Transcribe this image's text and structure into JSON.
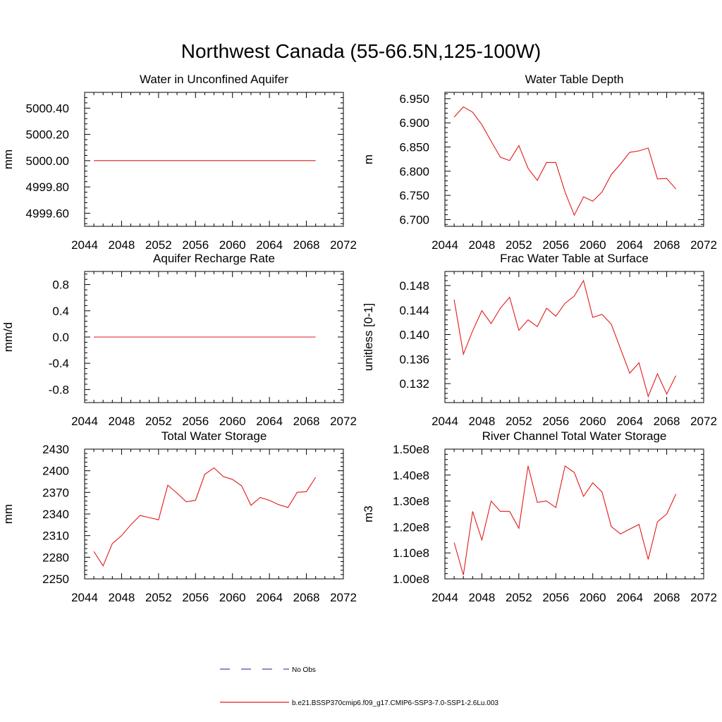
{
  "title": "Northwest Canada (55-66.5N,125-100W)",
  "legend": [
    {
      "label": "No Obs",
      "color": "#4a4aa8",
      "style": "dashed"
    },
    {
      "label": "b.e21.BSSP370cmip6.f09_g17.CMIP6-SSP3-7.0-SSP1-2.6Lu.003",
      "color": "#e31a1c",
      "style": "solid"
    }
  ],
  "series_color": "#e31a1c",
  "chart_data": [
    {
      "type": "line",
      "title": "Water in Unconfined Aquifer",
      "ylabel": "mm",
      "xlim": [
        2044,
        2072
      ],
      "xticks": [
        2044,
        2048,
        2052,
        2056,
        2060,
        2064,
        2068,
        2072
      ],
      "ylim": [
        4999.5,
        5000.52
      ],
      "yticks": [
        4999.6,
        4999.8,
        5000.0,
        5000.2,
        5000.4
      ],
      "ytick_labels": [
        "4999.60",
        "4999.80",
        "5000.00",
        "5000.20",
        "5000.40"
      ],
      "x": [
        2045,
        2046,
        2047,
        2048,
        2049,
        2050,
        2051,
        2052,
        2053,
        2054,
        2055,
        2056,
        2057,
        2058,
        2059,
        2060,
        2061,
        2062,
        2063,
        2064,
        2065,
        2066,
        2067,
        2068,
        2069
      ],
      "values": [
        5000.0,
        5000.0,
        5000.0,
        5000.0,
        5000.0,
        5000.0,
        5000.0,
        5000.0,
        5000.0,
        5000.0,
        5000.0,
        5000.0,
        5000.0,
        5000.0,
        5000.0,
        5000.0,
        5000.0,
        5000.0,
        5000.0,
        5000.0,
        5000.0,
        5000.0,
        5000.0,
        5000.0,
        5000.0
      ]
    },
    {
      "type": "line",
      "title": "Water Table Depth",
      "ylabel": "m",
      "xlim": [
        2044,
        2072
      ],
      "xticks": [
        2044,
        2048,
        2052,
        2056,
        2060,
        2064,
        2068,
        2072
      ],
      "ylim": [
        6.686,
        6.963
      ],
      "yticks": [
        6.7,
        6.75,
        6.8,
        6.85,
        6.9,
        6.95
      ],
      "ytick_labels": [
        "6.700",
        "6.750",
        "6.800",
        "6.850",
        "6.900",
        "6.950"
      ],
      "x": [
        2045,
        2046,
        2047,
        2048,
        2049,
        2050,
        2051,
        2052,
        2053,
        2054,
        2055,
        2056,
        2057,
        2058,
        2059,
        2060,
        2061,
        2062,
        2063,
        2064,
        2065,
        2066,
        2067,
        2068,
        2069
      ],
      "values": [
        6.912,
        6.933,
        6.922,
        6.896,
        6.862,
        6.829,
        6.822,
        6.853,
        6.806,
        6.781,
        6.818,
        6.818,
        6.757,
        6.709,
        6.747,
        6.738,
        6.757,
        6.793,
        6.815,
        6.839,
        6.842,
        6.848,
        6.784,
        6.785,
        6.763
      ]
    },
    {
      "type": "line",
      "title": "Aquifer Recharge Rate",
      "ylabel": "mm/d",
      "xlim": [
        2044,
        2072
      ],
      "xticks": [
        2044,
        2048,
        2052,
        2056,
        2060,
        2064,
        2068,
        2072
      ],
      "ylim": [
        -1.0,
        1.0
      ],
      "yticks": [
        -0.8,
        -0.4,
        0.0,
        0.4,
        0.8
      ],
      "ytick_labels": [
        "-0.8",
        "-0.4",
        "0.0",
        "0.4",
        "0.8"
      ],
      "x": [
        2045,
        2046,
        2047,
        2048,
        2049,
        2050,
        2051,
        2052,
        2053,
        2054,
        2055,
        2056,
        2057,
        2058,
        2059,
        2060,
        2061,
        2062,
        2063,
        2064,
        2065,
        2066,
        2067,
        2068,
        2069
      ],
      "values": [
        0.0,
        0.0,
        0.0,
        0.0,
        0.0,
        0.0,
        0.0,
        0.0,
        0.0,
        0.0,
        0.0,
        0.0,
        0.0,
        0.0,
        0.0,
        0.0,
        0.0,
        0.0,
        0.0,
        0.0,
        0.0,
        0.0,
        0.0,
        0.0,
        0.0
      ]
    },
    {
      "type": "line",
      "title": "Frac Water Table at Surface",
      "ylabel": "unitless [0-1]",
      "xlim": [
        2044,
        2072
      ],
      "xticks": [
        2044,
        2048,
        2052,
        2056,
        2060,
        2064,
        2068,
        2072
      ],
      "ylim": [
        0.1289,
        0.1503
      ],
      "yticks": [
        0.132,
        0.136,
        0.14,
        0.144,
        0.148
      ],
      "ytick_labels": [
        "0.132",
        "0.136",
        "0.140",
        "0.144",
        "0.148"
      ],
      "x": [
        2045,
        2046,
        2047,
        2048,
        2049,
        2050,
        2051,
        2052,
        2053,
        2054,
        2055,
        2056,
        2057,
        2058,
        2059,
        2060,
        2061,
        2062,
        2063,
        2064,
        2065,
        2066,
        2067,
        2068,
        2069
      ],
      "values": [
        0.1457,
        0.1368,
        0.1406,
        0.1439,
        0.1418,
        0.1443,
        0.1461,
        0.1407,
        0.1424,
        0.1413,
        0.1443,
        0.143,
        0.1451,
        0.1463,
        0.1488,
        0.1428,
        0.1433,
        0.1417,
        0.1377,
        0.1337,
        0.1354,
        0.1299,
        0.1336,
        0.1303,
        0.1333
      ]
    },
    {
      "type": "line",
      "title": "Total Water Storage",
      "ylabel": "mm",
      "xlim": [
        2044,
        2072
      ],
      "xticks": [
        2044,
        2048,
        2052,
        2056,
        2060,
        2064,
        2068,
        2072
      ],
      "ylim": [
        2250,
        2430
      ],
      "yticks": [
        2250,
        2280,
        2310,
        2340,
        2370,
        2400,
        2430
      ],
      "ytick_labels": [
        "2250",
        "2280",
        "2310",
        "2340",
        "2370",
        "2400",
        "2430"
      ],
      "x": [
        2045,
        2046,
        2047,
        2048,
        2049,
        2050,
        2051,
        2052,
        2053,
        2054,
        2055,
        2056,
        2057,
        2058,
        2059,
        2060,
        2061,
        2062,
        2063,
        2064,
        2065,
        2066,
        2067,
        2068,
        2069
      ],
      "values": [
        2288,
        2268,
        2299,
        2310,
        2325,
        2338,
        2335,
        2332,
        2380,
        2369,
        2357,
        2359,
        2395,
        2404,
        2392,
        2388,
        2379,
        2352,
        2363,
        2359,
        2353,
        2349,
        2370,
        2371,
        2391
      ]
    },
    {
      "type": "line",
      "title": "River Channel Total Water Storage",
      "ylabel": "m3",
      "xlim": [
        2044,
        2072
      ],
      "xticks": [
        2044,
        2048,
        2052,
        2056,
        2060,
        2064,
        2068,
        2072
      ],
      "ylim": [
        100000000,
        150000000
      ],
      "yticks": [
        100000000,
        110000000,
        120000000,
        130000000,
        140000000,
        150000000
      ],
      "ytick_labels": [
        "1.00e8",
        "1.10e8",
        "1.20e8",
        "1.30e8",
        "1.40e8",
        "1.50e8"
      ],
      "x": [
        2045,
        2046,
        2047,
        2048,
        2049,
        2050,
        2051,
        2052,
        2053,
        2054,
        2055,
        2056,
        2057,
        2058,
        2059,
        2060,
        2061,
        2062,
        2063,
        2064,
        2065,
        2066,
        2067,
        2068,
        2069
      ],
      "values": [
        114000000,
        101500000,
        126000000,
        115000000,
        130000000,
        126000000,
        126000000,
        119500000,
        143500000,
        129500000,
        130000000,
        127500000,
        143500000,
        141000000,
        131800000,
        137000000,
        133500000,
        120200000,
        117300000,
        119200000,
        121000000,
        107500000,
        122000000,
        125000000,
        132700000
      ]
    }
  ]
}
